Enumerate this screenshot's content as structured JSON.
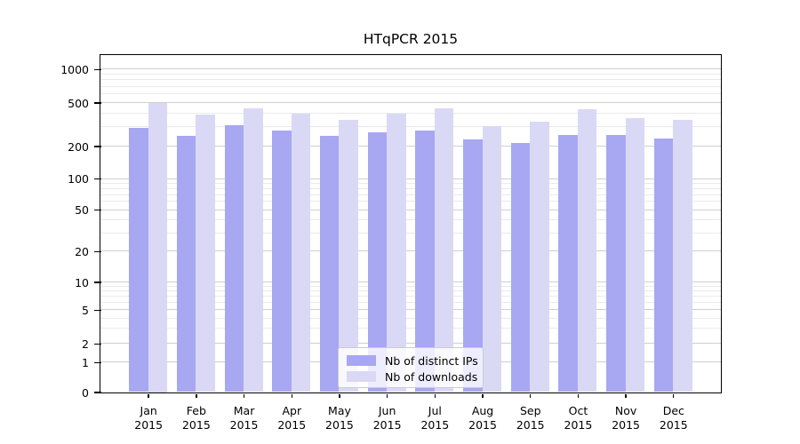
{
  "chart_data": {
    "type": "bar",
    "title": "HTqPCR 2015",
    "categories": [
      "Jan",
      "Feb",
      "Mar",
      "Apr",
      "May",
      "Jun",
      "Jul",
      "Aug",
      "Sep",
      "Oct",
      "Nov",
      "Dec"
    ],
    "category_year": "2015",
    "series": [
      {
        "name": "Nb of distinct IPs",
        "color": "#a7a7f2",
        "values": [
          295,
          250,
          310,
          275,
          250,
          265,
          275,
          230,
          215,
          255,
          255,
          235
        ]
      },
      {
        "name": "Nb of downloads",
        "color": "#d9d9f6",
        "values": [
          500,
          390,
          440,
          395,
          350,
          395,
          440,
          305,
          335,
          435,
          360,
          350
        ]
      }
    ],
    "yticks": [
      0,
      1,
      2,
      5,
      10,
      20,
      50,
      100,
      200,
      500,
      1000
    ],
    "yscale": "log-like (symlog)",
    "ylim": [
      0,
      1400
    ],
    "xlabel": "",
    "ylabel": "",
    "grid": "horizontal major and minor gridlines",
    "legend_position": "lower center"
  }
}
